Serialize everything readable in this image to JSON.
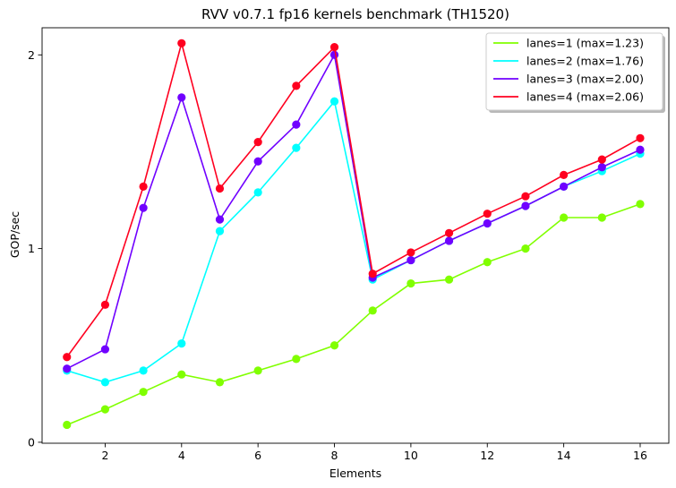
{
  "chart_data": {
    "type": "line",
    "title": "RVV v0.7.1 fp16 kernels benchmark (TH1520)",
    "xlabel": "Elements",
    "ylabel": "GOP/sec",
    "x": [
      1,
      2,
      3,
      4,
      5,
      6,
      7,
      8,
      9,
      10,
      11,
      12,
      13,
      14,
      15,
      16
    ],
    "xlim": [
      0.35,
      16.75
    ],
    "ylim": [
      -0.005,
      2.14
    ],
    "xticks": [
      2,
      4,
      6,
      8,
      10,
      12,
      14,
      16
    ],
    "yticks": [
      0,
      1,
      2
    ],
    "grid": false,
    "legend_placement": "top-right",
    "series": [
      {
        "name": "lanes=1 (max=1.23)",
        "color": "#80ff00",
        "values": [
          0.09,
          0.17,
          0.26,
          0.35,
          0.31,
          0.37,
          0.43,
          0.5,
          0.68,
          0.82,
          0.84,
          0.93,
          1.0,
          1.16,
          1.16,
          1.23
        ]
      },
      {
        "name": "lanes=2 (max=1.76)",
        "color": "#00ffff",
        "values": [
          0.37,
          0.31,
          0.37,
          0.51,
          1.09,
          1.29,
          1.52,
          1.76,
          0.84,
          0.94,
          1.04,
          1.13,
          1.22,
          1.32,
          1.4,
          1.49
        ]
      },
      {
        "name": "lanes=3 (max=2.00)",
        "color": "#7000ff",
        "values": [
          0.38,
          0.48,
          1.21,
          1.78,
          1.15,
          1.45,
          1.64,
          2.0,
          0.85,
          0.94,
          1.04,
          1.13,
          1.22,
          1.32,
          1.42,
          1.51
        ]
      },
      {
        "name": "lanes=4 (max=2.06)",
        "color": "#ff0020",
        "values": [
          0.44,
          0.71,
          1.32,
          2.06,
          1.31,
          1.55,
          1.84,
          2.04,
          0.87,
          0.98,
          1.08,
          1.18,
          1.27,
          1.38,
          1.46,
          1.57
        ]
      }
    ]
  }
}
